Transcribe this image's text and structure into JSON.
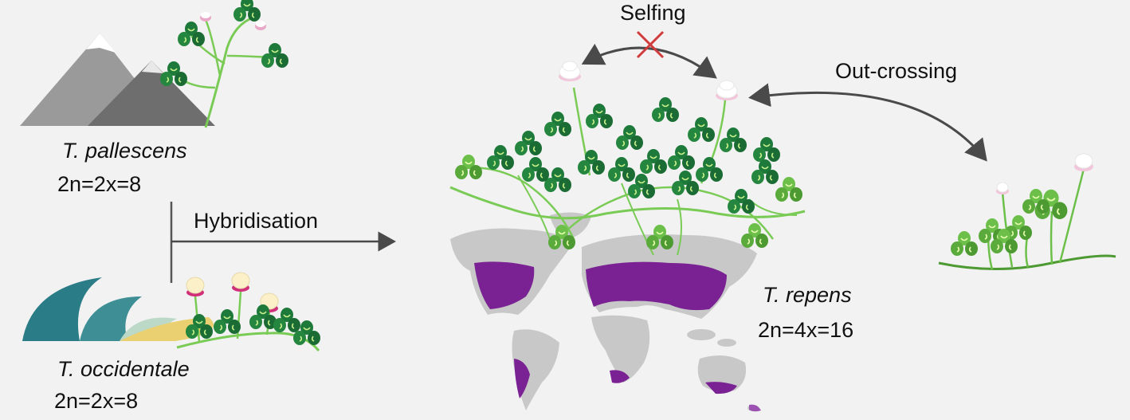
{
  "labels": {
    "pallescens_name": "T. pallescens",
    "pallescens_ploidy": "2n=2x=8",
    "occidentale_name": "T. occidentale",
    "occidentale_ploidy": "2n=2x=8",
    "hybridisation": "Hybridisation",
    "selfing": "Selfing",
    "outcrossing": "Out-crossing",
    "repens_name": "T. repens",
    "repens_ploidy": "2n=4x=16"
  },
  "colors": {
    "background": "#f2f2f2",
    "arrow": "#4a4a4a",
    "mountain_light": "#9a9a9a",
    "mountain_dark": "#6e6e6e",
    "leaf_dark": "#1e7a3a",
    "leaf_light": "#6cc04a",
    "stem": "#7acb56",
    "flower_pink": "#d0307a",
    "flower_white": "#ffffff",
    "land_gray": "#c8c8c8",
    "distribution_purple": "#7a2293",
    "wave_teal": "#2a7c86",
    "sand_yellow": "#ead070",
    "cross_red": "#d23b3b"
  },
  "icons": {
    "mountains": "mountains-icon",
    "waves": "waves-icon",
    "world_map": "world-map",
    "cross": "cross-mark-icon",
    "clover": "clover-icon"
  }
}
